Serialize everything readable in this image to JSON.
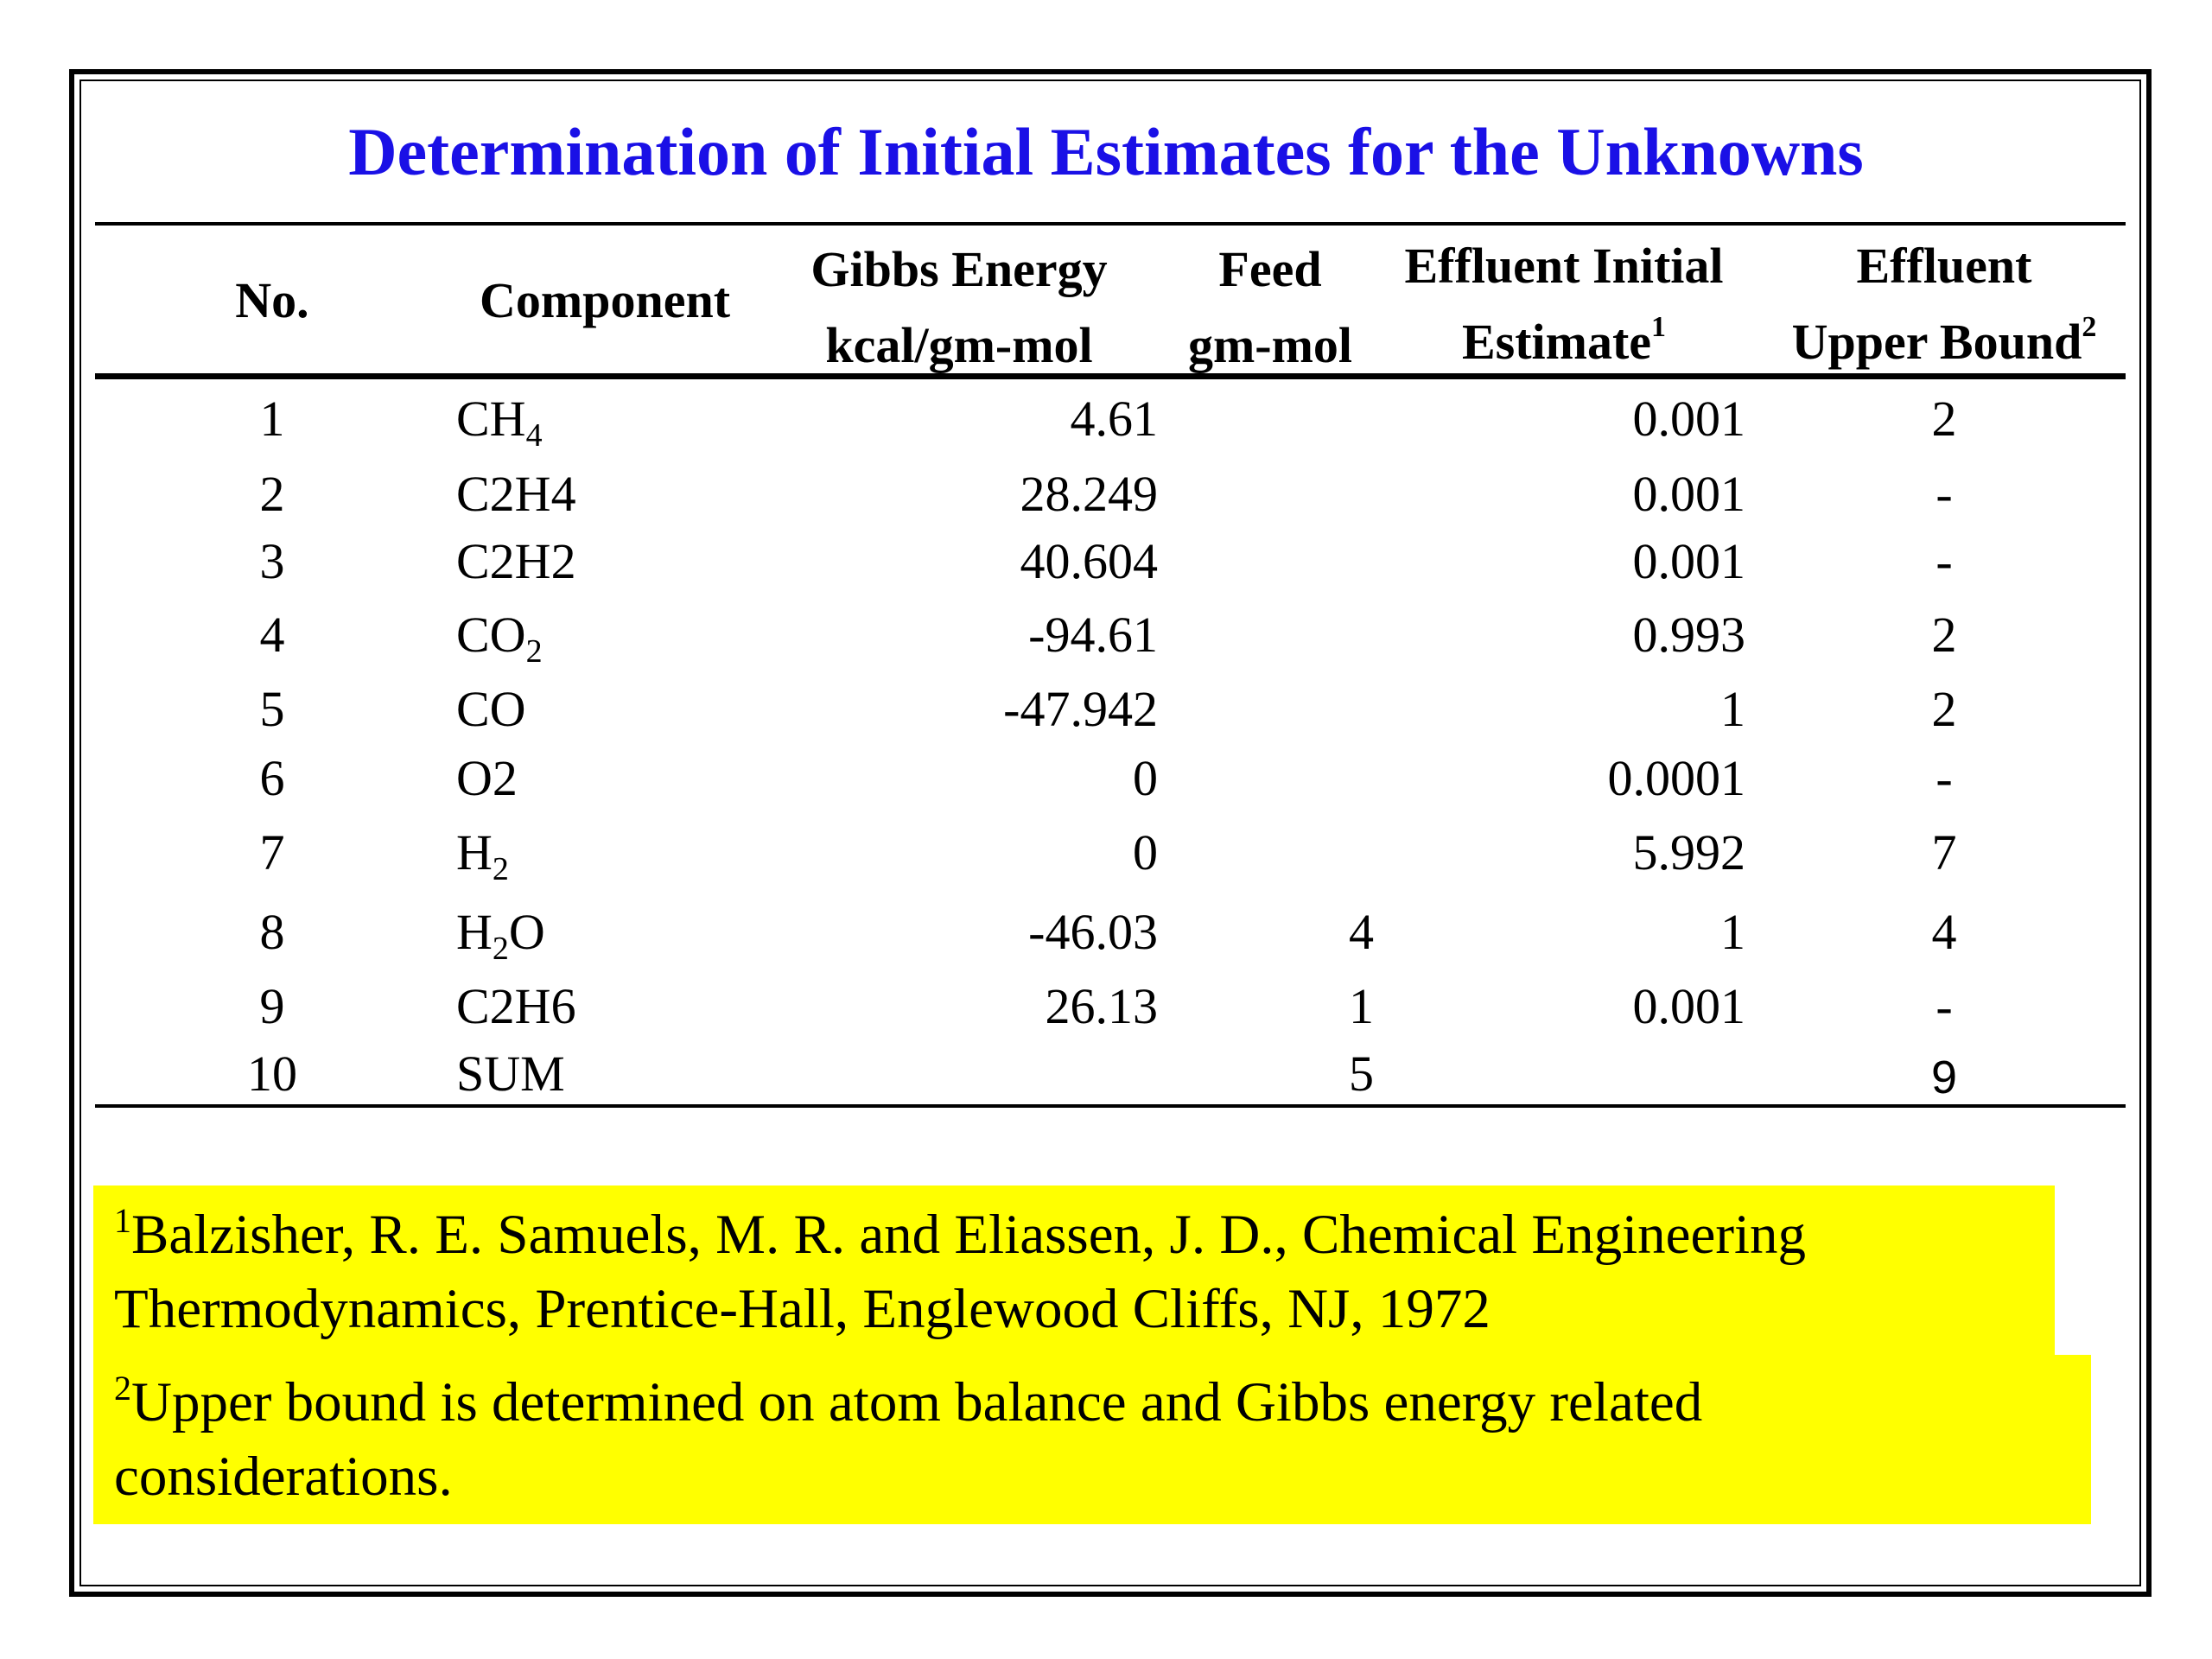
{
  "title": "Determination of Initial Estimates for the Unknowns",
  "headers": {
    "no": "No.",
    "component": "Component",
    "gibbs_line1": "Gibbs Energy",
    "gibbs_line2": "kcal/gm-mol",
    "feed_line1": "Feed",
    "feed_line2": "gm-mol",
    "effluent_initial_line1": "Effluent Initial",
    "effluent_initial_line2": "Estimate",
    "effluent_initial_mark": "1",
    "effluent_upper_line1": "Effluent",
    "effluent_upper_line2": "Upper Bound",
    "effluent_upper_mark": "2"
  },
  "rows": [
    {
      "no": "1",
      "comp_main": "CH",
      "comp_sub": "4",
      "comp_tail": "",
      "gibbs": "4.61",
      "feed": "",
      "effluent": "0.001",
      "upper": "2"
    },
    {
      "no": "2",
      "comp_main": "C2H4",
      "comp_sub": "",
      "comp_tail": "",
      "gibbs": "28.249",
      "feed": "",
      "effluent": "0.001",
      "upper": "-"
    },
    {
      "no": "3",
      "comp_main": "C2H2",
      "comp_sub": "",
      "comp_tail": "",
      "gibbs": "40.604",
      "feed": "",
      "effluent": "0.001",
      "upper": "-"
    },
    {
      "no": "4",
      "comp_main": "CO",
      "comp_sub": "2",
      "comp_tail": "",
      "gibbs": "-94.61",
      "feed": "",
      "effluent": "0.993",
      "upper": "2"
    },
    {
      "no": "5",
      "comp_main": "CO",
      "comp_sub": "",
      "comp_tail": "",
      "gibbs": "-47.942",
      "feed": "",
      "effluent": "1",
      "upper": "2"
    },
    {
      "no": "6",
      "comp_main": "O2",
      "comp_sub": "",
      "comp_tail": "",
      "gibbs": "0",
      "feed": "",
      "effluent": "0.0001",
      "upper": "-"
    },
    {
      "no": "7",
      "comp_main": "H",
      "comp_sub": "2",
      "comp_tail": "",
      "gibbs": "0",
      "feed": "",
      "effluent": "5.992",
      "upper": "7"
    },
    {
      "no": "8",
      "comp_main": "H",
      "comp_sub": "2",
      "comp_tail": "O",
      "gibbs": "-46.03",
      "feed": "4",
      "effluent": "1",
      "upper": "4"
    },
    {
      "no": "9",
      "comp_main": "C2H6",
      "comp_sub": "",
      "comp_tail": "",
      "gibbs": "26.13",
      "feed": "1",
      "effluent": "0.001",
      "upper": "-"
    },
    {
      "no": "10",
      "comp_main": "SUM",
      "comp_sub": "",
      "comp_tail": "",
      "gibbs": "",
      "feed": "5",
      "effluent": "",
      "upper": "9"
    }
  ],
  "notes": {
    "note1_mark": "1",
    "note1_line1": "Balzisher, R. E. Samuels, M. R. and Eliassen, J. D., Chemical Engineering",
    "note1_line2": "Thermodynamics, Prentice-Hall, Englewood Cliffs, NJ, 1972",
    "note2_mark": "2",
    "note2_line1": "Upper bound is determined on atom balance and Gibbs energy related",
    "note2_line2": "considerations."
  },
  "colors": {
    "title": "#1a10e6",
    "highlight": "#ffff00"
  }
}
